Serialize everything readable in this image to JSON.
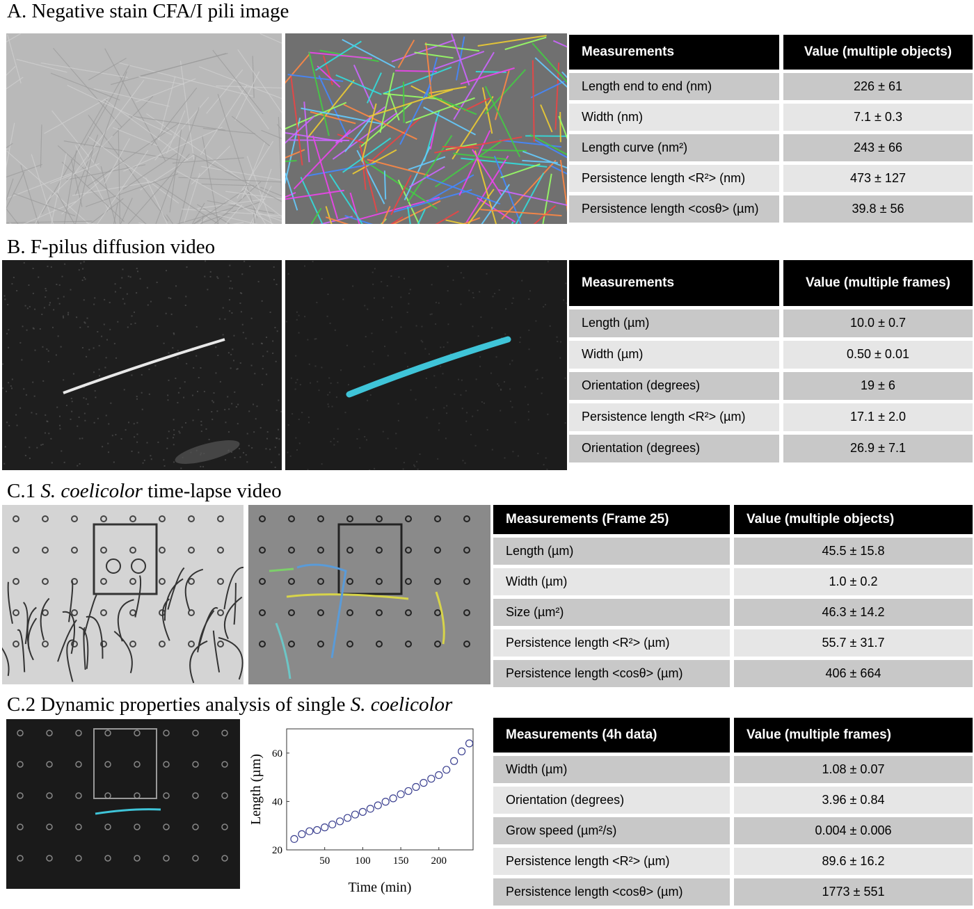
{
  "sections": {
    "a": {
      "title": "A. Negative stain CFA/I pili image",
      "table": {
        "headers": [
          "Measurements",
          "Value (multiple objects)"
        ],
        "rows": [
          [
            "Length end to end (nm)",
            "226 ± 61"
          ],
          [
            "Width (nm)",
            "7.1 ± 0.3"
          ],
          [
            "Length curve (nm²)",
            "243 ± 66"
          ],
          [
            "Persistence length <R²> (nm)",
            "473 ± 127"
          ],
          [
            "Persistence length <cosθ> (µm)",
            "39.8 ± 56"
          ]
        ]
      }
    },
    "b": {
      "title": "B. F-pilus diffusion video",
      "table": {
        "headers": [
          "Measurements",
          "Value (multiple frames)"
        ],
        "rows": [
          [
            "Length (µm)",
            "10.0 ± 0.7"
          ],
          [
            "Width (µm)",
            "0.50 ± 0.01"
          ],
          [
            "Orientation (degrees)",
            "19  ± 6"
          ],
          [
            "Persistence length <R²> (µm)",
            "17.1 ± 2.0"
          ],
          [
            "Orientation (degrees)",
            "26.9 ± 7.1"
          ]
        ]
      }
    },
    "c1": {
      "title_prefix": "C.1 ",
      "title_italic": "S. coelicolor",
      "title_suffix": " time-lapse video",
      "table": {
        "headers": [
          "Measurements (Frame 25)",
          "Value (multiple objects)"
        ],
        "rows": [
          [
            "Length (µm)",
            "45.5 ± 15.8"
          ],
          [
            "Width (µm)",
            "1.0 ± 0.2"
          ],
          [
            "Size (µm²)",
            "46.3 ± 14.2"
          ],
          [
            "Persistence length <R²> (µm)",
            "55.7 ± 31.7"
          ],
          [
            "Persistence length <cosθ> (µm)",
            "406 ± 664"
          ]
        ]
      }
    },
    "c2": {
      "title_prefix": "C.2 Dynamic properties analysis of single ",
      "title_italic": "S. coelicolor",
      "table": {
        "headers": [
          "Measurements (4h data)",
          "Value (multiple frames)"
        ],
        "rows": [
          [
            "Width (µm)",
            "1.08 ± 0.07"
          ],
          [
            "Orientation (degrees)",
            "3.96  ± 0.84"
          ],
          [
            "Grow speed (µm²/s)",
            "0.004 ± 0.006"
          ],
          [
            "Persistence length <R²> (µm)",
            "89.6 ± 16.2"
          ],
          [
            "Persistence length <cosθ> (µm)",
            "1773  ± 551"
          ]
        ]
      }
    }
  },
  "chart_data": {
    "type": "scatter",
    "xlabel": "Time (min)",
    "ylabel": "Length (µm)",
    "xlim": [
      0,
      245
    ],
    "ylim": [
      20,
      70
    ],
    "xticks": [
      50,
      100,
      150,
      200
    ],
    "yticks": [
      20,
      40,
      60
    ],
    "marker": "open-circle",
    "color": "#3a3f8f",
    "x": [
      10,
      20,
      30,
      40,
      50,
      60,
      70,
      80,
      90,
      100,
      110,
      120,
      130,
      140,
      150,
      160,
      170,
      180,
      190,
      200,
      210,
      220,
      230,
      240
    ],
    "y": [
      24.5,
      26.5,
      27.7,
      28.2,
      29.3,
      30.5,
      31.8,
      33.2,
      34.6,
      35.7,
      37.0,
      38.4,
      39.9,
      41.3,
      43.0,
      44.3,
      46.0,
      47.7,
      49.4,
      50.9,
      53.1,
      56.7,
      60.7,
      64.0
    ]
  },
  "colors": {
    "header_bg": "#000000",
    "row_dark": "#c8c8c8",
    "row_light": "#e6e6e6",
    "cyan_trace": "#3fc4d8"
  }
}
